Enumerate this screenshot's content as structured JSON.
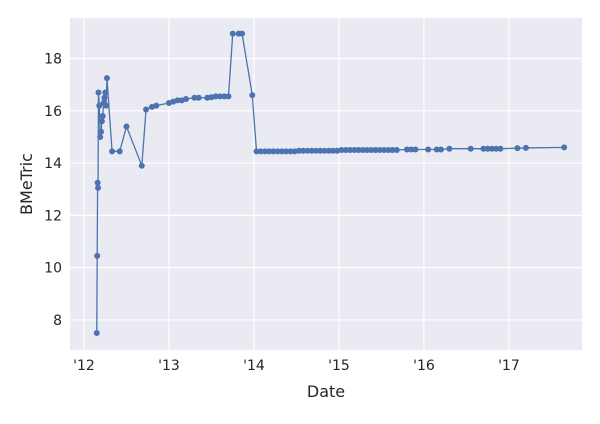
{
  "chart_data": {
    "type": "line",
    "x_label": "Date",
    "y_label": "BMeTric",
    "x": [
      2012.15,
      2012.155,
      2012.16,
      2012.165,
      2012.17,
      2012.18,
      2012.19,
      2012.2,
      2012.21,
      2012.22,
      2012.23,
      2012.24,
      2012.25,
      2012.26,
      2012.27,
      2012.33,
      2012.42,
      2012.5,
      2012.68,
      2012.73,
      2012.8,
      2012.85,
      2013.0,
      2013.05,
      2013.1,
      2013.15,
      2013.2,
      2013.3,
      2013.35,
      2013.45,
      2013.5,
      2013.55,
      2013.6,
      2013.65,
      2013.7,
      2013.75,
      2013.82,
      2013.86,
      2013.98,
      2014.03,
      2014.08,
      2014.13,
      2014.18,
      2014.23,
      2014.28,
      2014.33,
      2014.38,
      2014.43,
      2014.48,
      2014.53,
      2014.58,
      2014.63,
      2014.68,
      2014.73,
      2014.78,
      2014.83,
      2014.88,
      2014.93,
      2014.98,
      2015.03,
      2015.08,
      2015.13,
      2015.18,
      2015.23,
      2015.28,
      2015.33,
      2015.38,
      2015.43,
      2015.48,
      2015.53,
      2015.58,
      2015.63,
      2015.68,
      2015.8,
      2015.85,
      2015.9,
      2016.05,
      2016.15,
      2016.2,
      2016.3,
      2016.55,
      2016.7,
      2016.75,
      2016.8,
      2016.85,
      2016.9,
      2017.1,
      2017.2,
      2017.65
    ],
    "series": [
      {
        "name": "BMeTric",
        "color": "#4c72b0",
        "values": [
          7.5,
          10.45,
          13.25,
          13.05,
          16.7,
          16.2,
          15.0,
          15.2,
          15.6,
          15.8,
          16.3,
          16.5,
          16.7,
          16.2,
          17.25,
          14.45,
          14.45,
          15.4,
          13.9,
          16.05,
          16.15,
          16.2,
          16.3,
          16.35,
          16.4,
          16.4,
          16.45,
          16.5,
          16.5,
          16.5,
          16.52,
          16.55,
          16.55,
          16.55,
          16.55,
          18.95,
          18.95,
          18.95,
          16.6,
          14.45,
          14.45,
          14.45,
          14.45,
          14.45,
          14.45,
          14.45,
          14.45,
          14.45,
          14.45,
          14.47,
          14.47,
          14.47,
          14.47,
          14.47,
          14.47,
          14.47,
          14.47,
          14.47,
          14.47,
          14.5,
          14.5,
          14.5,
          14.5,
          14.5,
          14.5,
          14.5,
          14.5,
          14.5,
          14.5,
          14.5,
          14.5,
          14.5,
          14.5,
          14.52,
          14.52,
          14.52,
          14.52,
          14.52,
          14.52,
          14.55,
          14.55,
          14.55,
          14.55,
          14.55,
          14.55,
          14.55,
          14.57,
          14.58,
          14.6
        ]
      }
    ],
    "xlim": [
      2011.835,
      2017.86
    ],
    "ylim": [
      6.85,
      19.55
    ],
    "xticks": [
      {
        "value": 2012,
        "label": "'12"
      },
      {
        "value": 2013,
        "label": "'13"
      },
      {
        "value": 2014,
        "label": "'14"
      },
      {
        "value": 2015,
        "label": "'15"
      },
      {
        "value": 2016,
        "label": "'16"
      },
      {
        "value": 2017,
        "label": "'17"
      }
    ],
    "yticks": [
      8,
      10,
      12,
      14,
      16,
      18
    ],
    "grid": true
  }
}
